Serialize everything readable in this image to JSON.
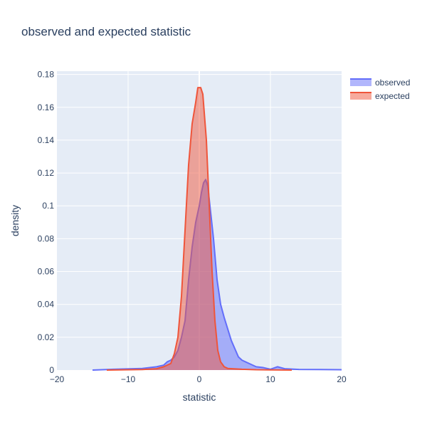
{
  "chart_data": {
    "type": "area",
    "title": "observed and expected statistic",
    "xlabel": "statistic",
    "ylabel": "density",
    "xlim": [
      -20,
      20
    ],
    "ylim": [
      0,
      0.182
    ],
    "x_ticks": [
      -20,
      -10,
      0,
      10,
      20
    ],
    "y_ticks": [
      0,
      0.02,
      0.04,
      0.06,
      0.08,
      0.1,
      0.12,
      0.14,
      0.16,
      0.18
    ],
    "x_tick_labels": [
      "−20",
      "−10",
      "0",
      "10",
      "20"
    ],
    "y_tick_labels": [
      "0",
      "0.02",
      "0.04",
      "0.06",
      "0.08",
      "0.1",
      "0.12",
      "0.14",
      "0.16",
      "0.18"
    ],
    "grid": true,
    "legend_position": "top-right",
    "series": [
      {
        "name": "observed",
        "color": "#636efa",
        "fill": "rgba(99,110,250,0.5)",
        "points": [
          [
            -15,
            0
          ],
          [
            -12,
            0.0005
          ],
          [
            -8,
            0.001
          ],
          [
            -6,
            0.002
          ],
          [
            -5,
            0.003
          ],
          [
            -4.5,
            0.005
          ],
          [
            -4,
            0.006
          ],
          [
            -3.5,
            0.008
          ],
          [
            -3,
            0.012
          ],
          [
            -2.5,
            0.02
          ],
          [
            -2,
            0.03
          ],
          [
            -1.5,
            0.055
          ],
          [
            -1,
            0.075
          ],
          [
            -0.5,
            0.09
          ],
          [
            0,
            0.1
          ],
          [
            0.3,
            0.108
          ],
          [
            0.6,
            0.114
          ],
          [
            0.9,
            0.116
          ],
          [
            1.2,
            0.112
          ],
          [
            1.5,
            0.1
          ],
          [
            2,
            0.08
          ],
          [
            2.5,
            0.055
          ],
          [
            3,
            0.04
          ],
          [
            3.5,
            0.032
          ],
          [
            4,
            0.025
          ],
          [
            4.5,
            0.018
          ],
          [
            5,
            0.013
          ],
          [
            5.5,
            0.008
          ],
          [
            6,
            0.006
          ],
          [
            7,
            0.004
          ],
          [
            8,
            0.002
          ],
          [
            9,
            0.0015
          ],
          [
            10,
            0.0005
          ],
          [
            11,
            0.002
          ],
          [
            12,
            0.0008
          ],
          [
            14,
            0.0004
          ],
          [
            17,
            0.0003
          ],
          [
            20,
            0.0002
          ]
        ]
      },
      {
        "name": "expected",
        "color": "#ef553b",
        "fill": "rgba(239,85,59,0.5)",
        "points": [
          [
            -13,
            0
          ],
          [
            -8,
            0.0003
          ],
          [
            -6,
            0.0008
          ],
          [
            -5,
            0.002
          ],
          [
            -4,
            0.004
          ],
          [
            -3.5,
            0.01
          ],
          [
            -3,
            0.02
          ],
          [
            -2.5,
            0.045
          ],
          [
            -2,
            0.085
          ],
          [
            -1.5,
            0.125
          ],
          [
            -1,
            0.15
          ],
          [
            -0.5,
            0.163
          ],
          [
            -0.2,
            0.172
          ],
          [
            0.2,
            0.172
          ],
          [
            0.5,
            0.168
          ],
          [
            1,
            0.14
          ],
          [
            1.4,
            0.1
          ],
          [
            1.8,
            0.06
          ],
          [
            2.2,
            0.03
          ],
          [
            2.6,
            0.012
          ],
          [
            3,
            0.005
          ],
          [
            3.5,
            0.002
          ],
          [
            4,
            0.001
          ],
          [
            6,
            0.0005
          ],
          [
            8,
            0.0002
          ],
          [
            10,
            0.0001
          ],
          [
            13,
            0
          ]
        ]
      }
    ]
  }
}
